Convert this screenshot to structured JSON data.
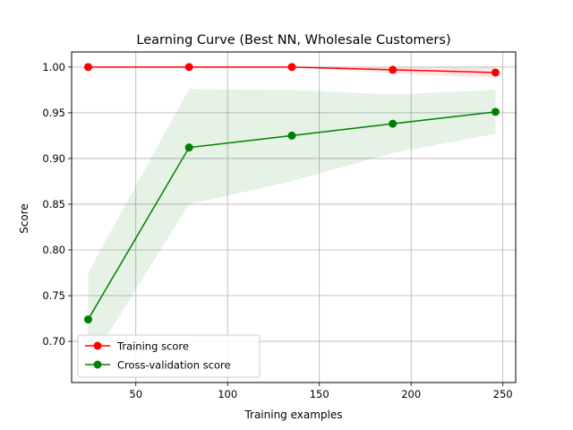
{
  "chart_data": {
    "type": "line",
    "title": "Learning Curve (Best NN, Wholesale Customers)",
    "xlabel": "Training examples",
    "ylabel": "Score",
    "xlim": [
      15,
      257
    ],
    "ylim": [
      0.655,
      1.0165
    ],
    "xticks": [
      50,
      100,
      150,
      200,
      250
    ],
    "yticks": [
      0.7,
      0.75,
      0.8,
      0.85,
      0.9,
      0.95,
      1.0
    ],
    "xtick_labels": [
      "50",
      "100",
      "150",
      "200",
      "250"
    ],
    "ytick_labels": [
      "0.70",
      "0.75",
      "0.80",
      "0.85",
      "0.90",
      "0.95",
      "1.00"
    ],
    "grid": true,
    "legend_position": "lower-left",
    "x": [
      24,
      79,
      135,
      190,
      246
    ],
    "series": [
      {
        "name": "Training score",
        "color": "#ff0000",
        "values": [
          1.0,
          1.0,
          1.0,
          0.997,
          0.994
        ],
        "band_lower": [
          1.0,
          1.0,
          1.0,
          0.993,
          0.988
        ],
        "band_upper": [
          1.0,
          1.0,
          1.0,
          1.0,
          1.0
        ]
      },
      {
        "name": "Cross-validation score",
        "color": "#008000",
        "values": [
          0.724,
          0.912,
          0.925,
          0.938,
          0.951
        ],
        "band_lower": [
          0.673,
          0.85,
          0.875,
          0.906,
          0.927
        ],
        "band_upper": [
          0.775,
          0.976,
          0.975,
          0.97,
          0.975
        ]
      }
    ]
  }
}
